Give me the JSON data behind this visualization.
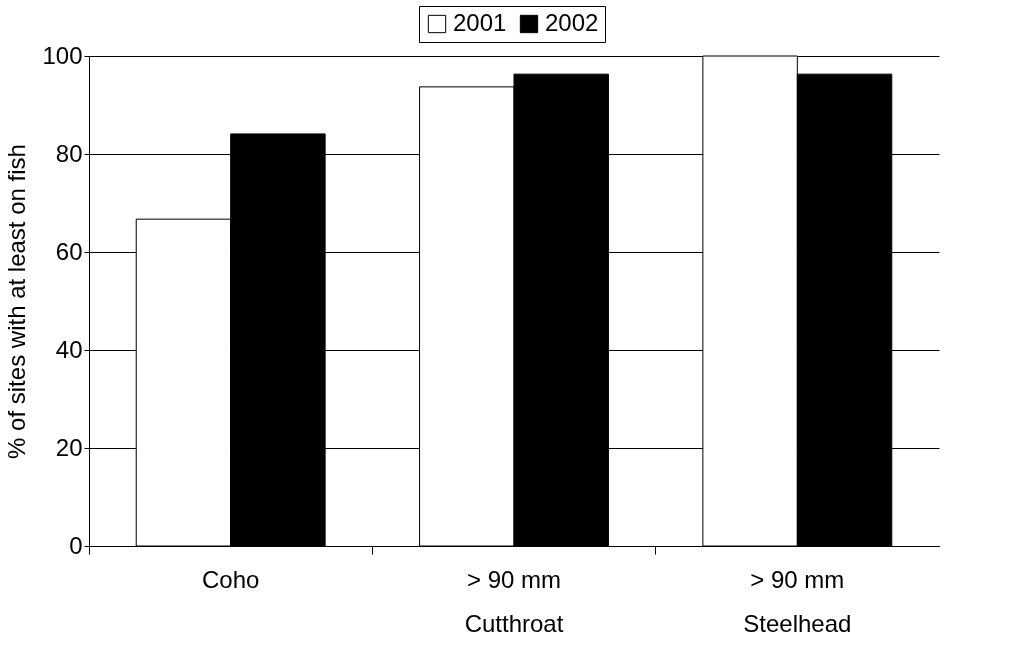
{
  "chart_data": {
    "type": "bar",
    "ylabel": "% of sites with at least on fish",
    "categories": [
      "Coho",
      "> 90 mm\nCutthroat",
      "> 90 mm\nSteelhead"
    ],
    "series": [
      {
        "name": "2001",
        "color": "#ffffff",
        "values": [
          66.7,
          93.7,
          100
        ]
      },
      {
        "name": "2002",
        "color": "#000000",
        "values": [
          84.1,
          96.3,
          96.3
        ]
      }
    ],
    "ylim": [
      0,
      100
    ],
    "yticks": [
      0,
      20,
      40,
      60,
      80,
      100
    ],
    "grid": "y",
    "legend": "top"
  }
}
